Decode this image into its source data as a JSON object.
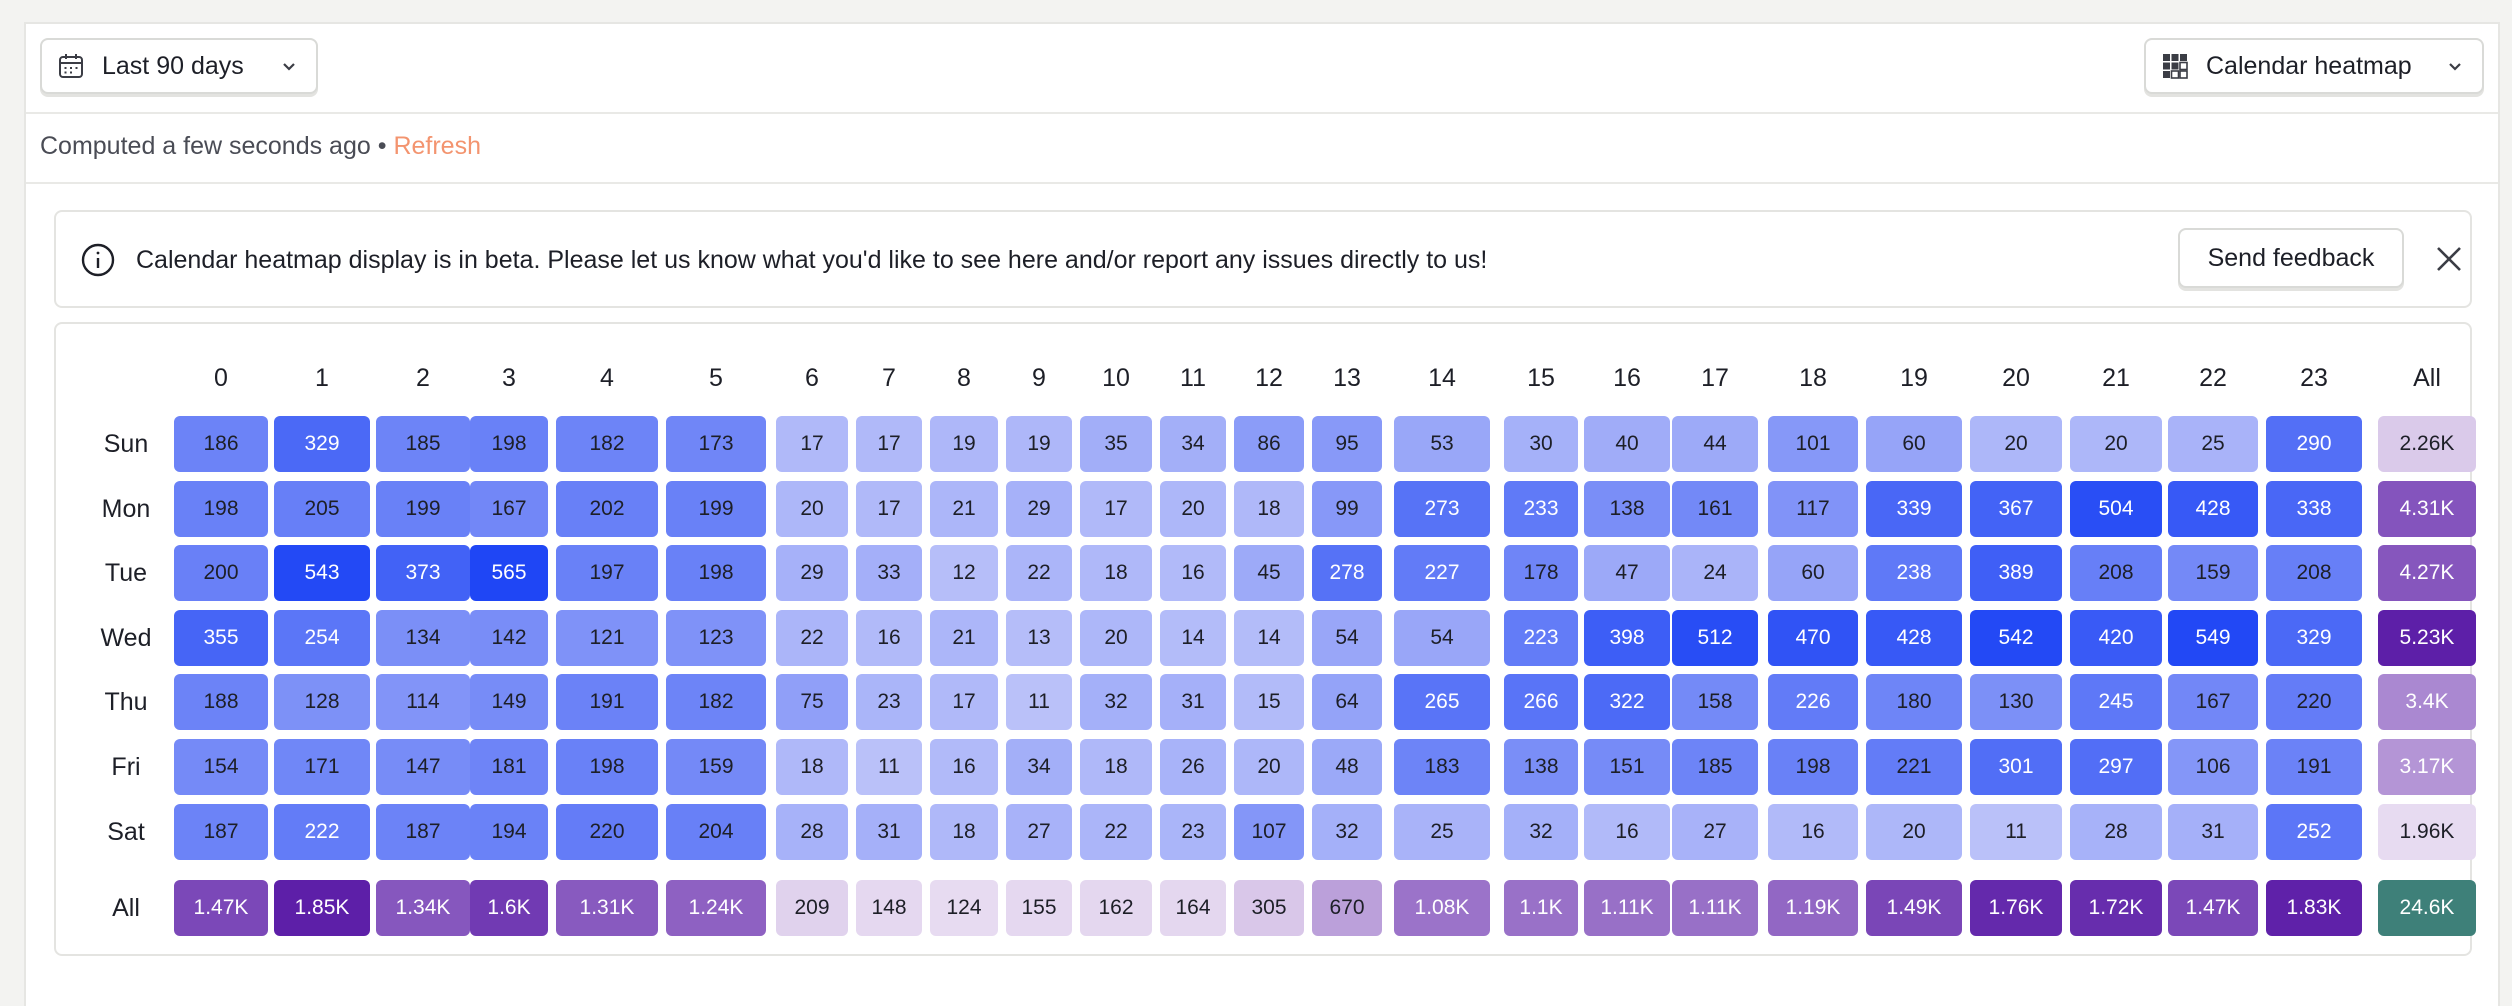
{
  "toolbar": {
    "date_range_label": "Last 90 days",
    "visualization_label": "Calendar heatmap"
  },
  "status": {
    "computed_text": "Computed a few seconds ago",
    "separator": "•",
    "refresh_label": "Refresh"
  },
  "banner": {
    "message": "Calendar heatmap display is in beta. Please let us know what you'd like to see here and/or report any issues directly to us!",
    "feedback_label": "Send feedback"
  },
  "colors": {
    "cell_min": "#dcdcfa",
    "cell_max": "#1f46f5",
    "aggregate_min": "#e7dbf1",
    "aggregate_max": "#5d1fa8",
    "total": "#3e8079",
    "refresh": "#f3946f"
  },
  "chart_data": {
    "type": "heatmap",
    "x": [
      "0",
      "1",
      "2",
      "3",
      "4",
      "5",
      "6",
      "7",
      "8",
      "9",
      "10",
      "11",
      "12",
      "13",
      "14",
      "15",
      "16",
      "17",
      "18",
      "19",
      "20",
      "21",
      "22",
      "23"
    ],
    "y": [
      "Sun",
      "Mon",
      "Tue",
      "Wed",
      "Thu",
      "Fri",
      "Sat"
    ],
    "values": [
      [
        186,
        329,
        185,
        198,
        182,
        173,
        17,
        17,
        19,
        19,
        35,
        34,
        86,
        95,
        53,
        30,
        40,
        44,
        101,
        60,
        20,
        20,
        25,
        290
      ],
      [
        198,
        205,
        199,
        167,
        202,
        199,
        20,
        17,
        21,
        29,
        17,
        20,
        18,
        99,
        273,
        233,
        138,
        161,
        117,
        339,
        367,
        504,
        428,
        338
      ],
      [
        200,
        543,
        373,
        565,
        197,
        198,
        29,
        33,
        12,
        22,
        18,
        16,
        45,
        278,
        227,
        178,
        47,
        24,
        60,
        238,
        389,
        208,
        159,
        208
      ],
      [
        355,
        254,
        134,
        142,
        121,
        123,
        22,
        16,
        21,
        13,
        20,
        14,
        14,
        54,
        54,
        223,
        398,
        512,
        470,
        428,
        542,
        420,
        549,
        329
      ],
      [
        188,
        128,
        114,
        149,
        191,
        182,
        75,
        23,
        17,
        11,
        32,
        31,
        15,
        64,
        265,
        266,
        322,
        158,
        226,
        180,
        130,
        245,
        167,
        220
      ],
      [
        154,
        171,
        147,
        181,
        198,
        159,
        18,
        11,
        16,
        34,
        18,
        26,
        20,
        48,
        183,
        138,
        151,
        185,
        198,
        221,
        301,
        297,
        106,
        191
      ],
      [
        187,
        222,
        187,
        194,
        220,
        204,
        28,
        31,
        18,
        27,
        22,
        23,
        107,
        32,
        25,
        32,
        16,
        27,
        16,
        20,
        11,
        28,
        31,
        252
      ]
    ],
    "all_label": "All",
    "row_totals": [
      "2.26K",
      "4.31K",
      "4.27K",
      "5.23K",
      "3.4K",
      "3.17K",
      "1.96K"
    ],
    "column_totals": [
      "1.47K",
      "1.85K",
      "1.34K",
      "1.6K",
      "1.31K",
      "1.24K",
      "209",
      "148",
      "124",
      "155",
      "162",
      "164",
      "305",
      "670",
      "1.08K",
      "1.1K",
      "1.11K",
      "1.11K",
      "1.19K",
      "1.49K",
      "1.76K",
      "1.72K",
      "1.47K",
      "1.83K"
    ],
    "grand_total": "24.6K"
  }
}
